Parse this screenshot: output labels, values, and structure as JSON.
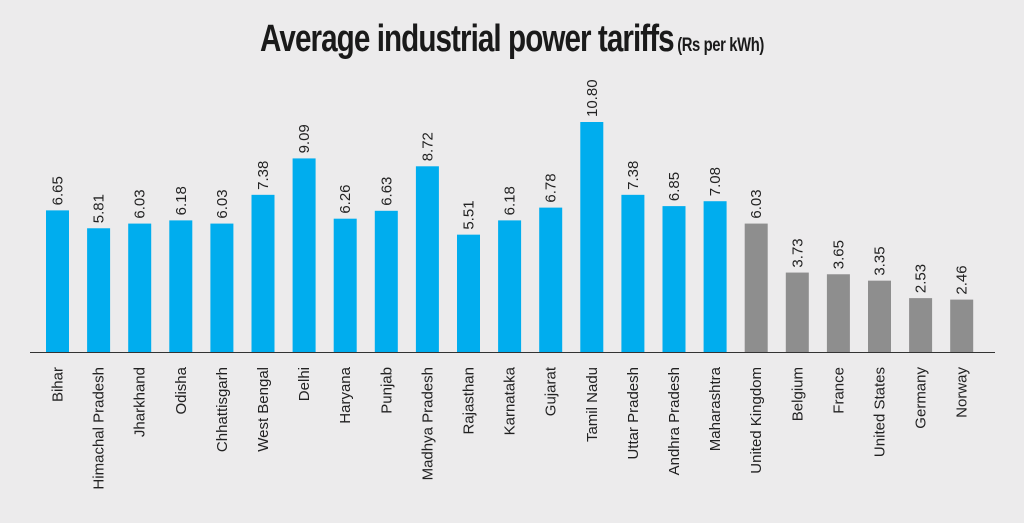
{
  "chart_data": {
    "type": "bar",
    "title": "Average industrial power tariffs",
    "subtitle": "(Rs per kWh)",
    "xlabel": "",
    "ylabel": "",
    "ylim": [
      0,
      10.8
    ],
    "grid": false,
    "categories": [
      "Bihar",
      "Himachal Pradesh",
      "Jharkhand",
      "Odisha",
      "Chhattisgarh",
      "West Bengal",
      "Delhi",
      "Haryana",
      "Punjab",
      "Madhya Pradesh",
      "Rajasthan",
      "Karnataka",
      "Gujarat",
      "Tamil Nadu",
      "Uttar Pradesh",
      "Andhra Pradesh",
      "Maharashtra",
      "United Kingdom",
      "Belgium",
      "France",
      "United States",
      "Germany",
      "Norway"
    ],
    "values": [
      6.65,
      5.81,
      6.03,
      6.18,
      6.03,
      7.38,
      9.09,
      6.26,
      6.63,
      8.72,
      5.51,
      6.18,
      6.78,
      10.8,
      7.38,
      6.85,
      7.08,
      6.03,
      3.73,
      3.65,
      3.35,
      2.53,
      2.46
    ],
    "value_labels": [
      "6.65",
      "5.81",
      "6.03",
      "6.18",
      "6.03",
      "7.38",
      "9.09",
      "6.26",
      "6.63",
      "8.72",
      "5.51",
      "6.18",
      "6.78",
      "10.80",
      "7.38",
      "6.85",
      "7.08",
      "6.03",
      "3.73",
      "3.65",
      "3.35",
      "2.53",
      "2.46"
    ],
    "groups": [
      "india",
      "india",
      "india",
      "india",
      "india",
      "india",
      "india",
      "india",
      "india",
      "india",
      "india",
      "india",
      "india",
      "india",
      "india",
      "india",
      "india",
      "intl",
      "intl",
      "intl",
      "intl",
      "intl",
      "intl"
    ],
    "colors": {
      "india": "#00adee",
      "intl": "#8e8e8e",
      "axis": "#333333"
    }
  }
}
